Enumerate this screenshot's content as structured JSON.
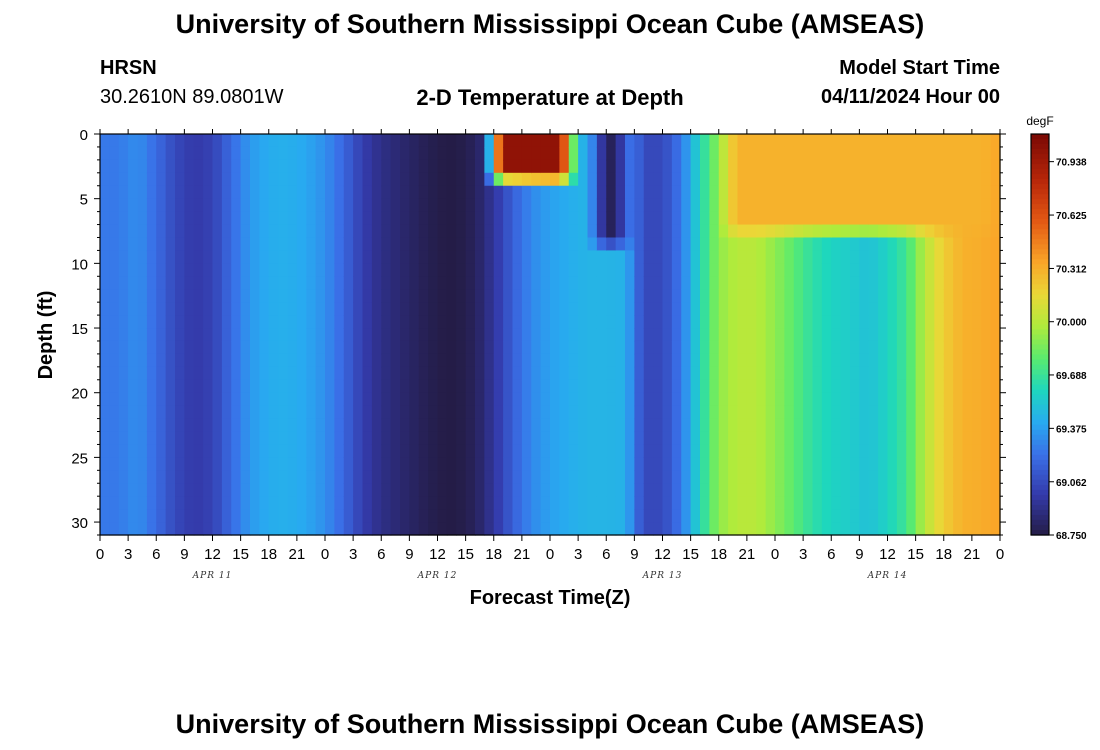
{
  "page": {
    "title_top": "University of Southern Mississippi Ocean Cube (AMSEAS)",
    "title_bottom": "University of Southern Mississippi Ocean Cube (AMSEAS)",
    "station": "HRSN",
    "coords": "30.2610N  89.0801W",
    "plot_title": "2-D Temperature at Depth",
    "model_start_label": "Model Start Time",
    "model_start_value": "04/11/2024 Hour 00"
  },
  "chart_data": {
    "type": "heatmap",
    "title": "2-D Temperature at Depth",
    "xlabel": "Forecast Time(Z)",
    "ylabel": "Depth (ft)",
    "x_range_hours": [
      0,
      96
    ],
    "y_range_ft": [
      0,
      31
    ],
    "x_tick_hours": [
      0,
      3,
      6,
      9,
      12,
      15,
      18,
      21,
      24,
      27,
      30,
      33,
      36,
      39,
      42,
      45,
      48,
      51,
      54,
      57,
      60,
      63,
      66,
      69,
      72,
      75,
      78,
      81,
      84,
      87,
      90,
      93,
      96
    ],
    "x_tick_labels": [
      "0",
      "3",
      "6",
      "9",
      "12",
      "15",
      "18",
      "21",
      "0",
      "3",
      "6",
      "9",
      "12",
      "15",
      "18",
      "21",
      "0",
      "3",
      "6",
      "9",
      "12",
      "15",
      "18",
      "21",
      "0",
      "3",
      "6",
      "9",
      "12",
      "15",
      "18",
      "21",
      "0"
    ],
    "day_labels": [
      {
        "label": "APR 11",
        "hour": 12
      },
      {
        "label": "APR 12",
        "hour": 36
      },
      {
        "label": "APR 13",
        "hour": 60
      },
      {
        "label": "APR 14",
        "hour": 84
      }
    ],
    "y_ticks": [
      0,
      5,
      10,
      15,
      20,
      25,
      30
    ],
    "y_tick_labels": [
      "0",
      "5",
      "10",
      "15",
      "20",
      "25",
      "30"
    ],
    "colorbar": {
      "units": "degF",
      "min": 68.75,
      "max": 71.1,
      "ticks": [
        68.75,
        69.062,
        69.375,
        69.688,
        70.0,
        70.312,
        70.625,
        70.938
      ],
      "tick_labels": [
        "68.750",
        "69.062",
        "69.375",
        "69.688",
        "70.000",
        "70.312",
        "70.625",
        "70.938"
      ]
    },
    "column_profile_degF": [
      [
        0,
        69.25
      ],
      [
        2,
        69.25
      ],
      [
        4,
        69.32
      ],
      [
        6,
        69.2
      ],
      [
        8,
        69.05
      ],
      [
        10,
        68.98
      ],
      [
        12,
        69.02
      ],
      [
        14,
        69.2
      ],
      [
        16,
        69.35
      ],
      [
        18,
        69.42
      ],
      [
        20,
        69.43
      ],
      [
        22,
        69.4
      ],
      [
        24,
        69.32
      ],
      [
        26,
        69.18
      ],
      [
        28,
        69.0
      ],
      [
        30,
        68.9
      ],
      [
        32,
        68.85
      ],
      [
        34,
        68.8
      ],
      [
        36,
        68.76
      ],
      [
        38,
        68.75
      ],
      [
        40,
        68.8
      ],
      [
        42,
        68.95
      ],
      [
        44,
        69.15
      ],
      [
        46,
        69.3
      ],
      [
        48,
        69.38
      ],
      [
        50,
        69.42
      ],
      [
        52,
        69.45
      ],
      [
        54,
        69.45
      ],
      [
        56,
        69.44
      ],
      [
        58,
        69.05
      ],
      [
        60,
        69.05
      ],
      [
        62,
        69.25
      ],
      [
        64,
        69.6
      ],
      [
        66,
        69.9
      ],
      [
        68,
        70.0
      ],
      [
        70,
        70.0
      ],
      [
        72,
        69.9
      ],
      [
        74,
        69.78
      ],
      [
        76,
        69.65
      ],
      [
        78,
        69.58
      ],
      [
        80,
        69.55
      ],
      [
        82,
        69.5
      ],
      [
        84,
        69.58
      ],
      [
        86,
        69.7
      ],
      [
        88,
        70.0
      ],
      [
        90,
        70.2
      ],
      [
        92,
        70.3
      ],
      [
        94,
        70.32
      ],
      [
        96,
        70.35
      ]
    ],
    "surface_features": [
      {
        "description": "warm surface layer",
        "hour_start": 41,
        "hour_end": 51,
        "depth_max_ft": 4,
        "value_degF": 71.0
      },
      {
        "description": "cold near-surface layer",
        "hour_start": 52,
        "hour_end": 57,
        "depth_max_ft": 9,
        "value_degF": 68.8
      },
      {
        "description": "warm surface layer",
        "hour_start": 66,
        "hour_end": 96,
        "depth_max_ft": 8,
        "value_degF": 70.3
      }
    ]
  }
}
